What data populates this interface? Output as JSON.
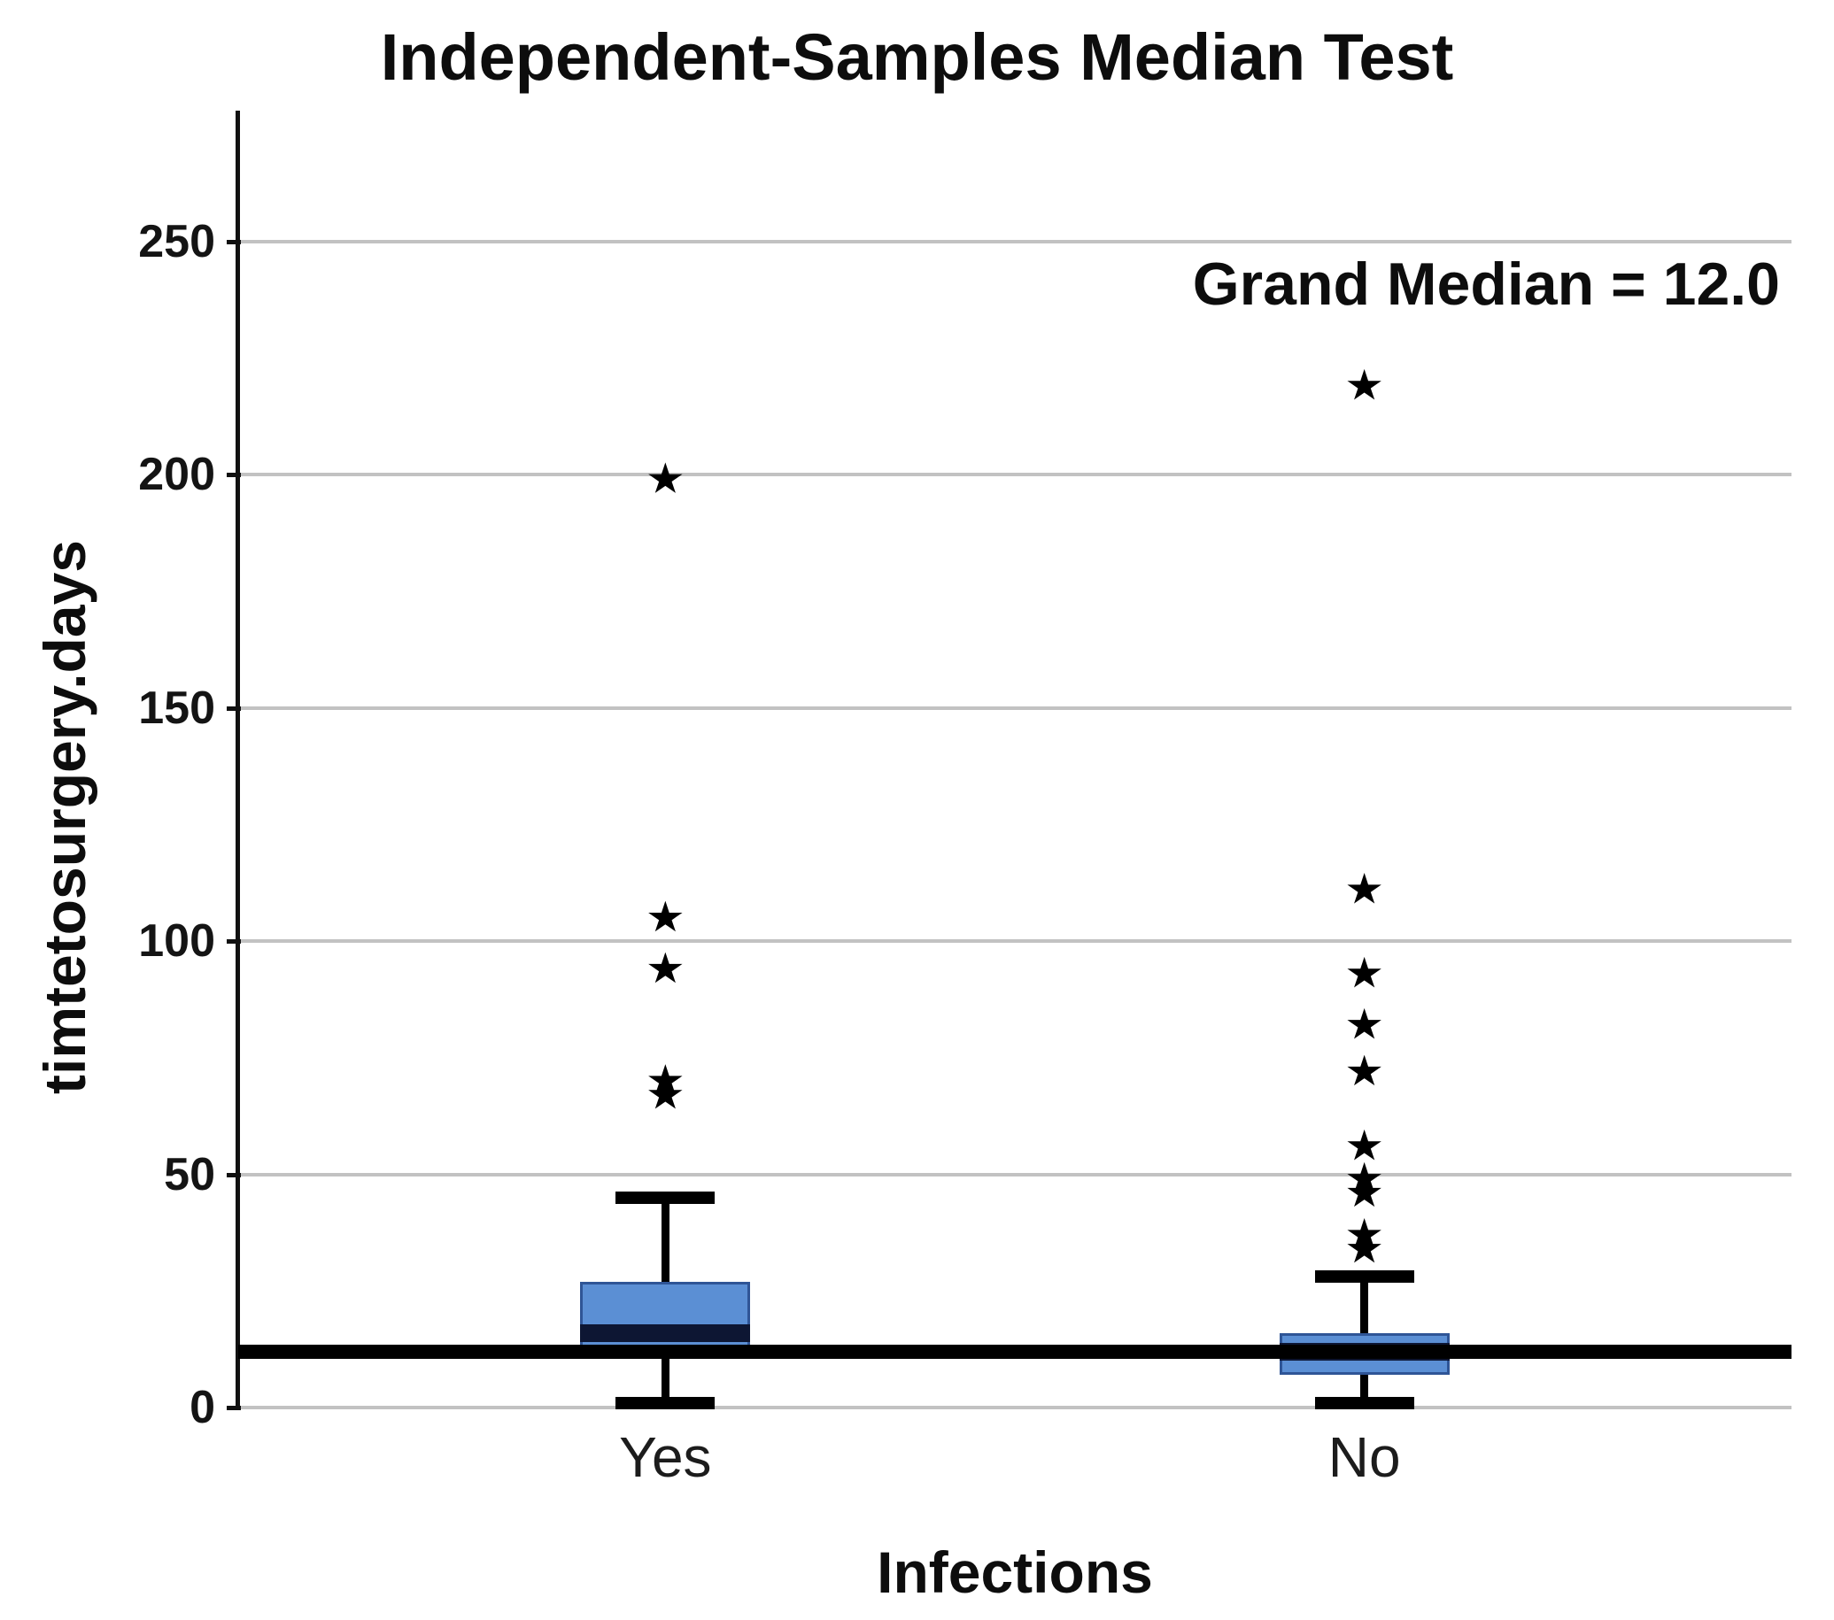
{
  "figure": {
    "title": "Independent-Samples Median Test",
    "annotation": "Grand Median = 12.0",
    "y_axis_label": "timtetosurgery.days",
    "x_axis_label": "Infections"
  },
  "colors": {
    "background": "#ffffff",
    "text": "#0d0d0d",
    "box_fill": "#5b8fd4",
    "box_border": "#2f5596",
    "median_line": "#0d1633",
    "whisker": "#000000",
    "grand_median_line": "#000000",
    "gridline": "#c2c2c2"
  },
  "chart_data": {
    "type": "boxplot",
    "title": "Independent-Samples Median Test",
    "xlabel": "Infections",
    "ylabel": "timtetosurgery.days",
    "annotation": "Grand Median = 12.0",
    "grand_median": 12.0,
    "categories": [
      "Yes",
      "No"
    ],
    "yticks": [
      0,
      50,
      100,
      150,
      200,
      250
    ],
    "ylim": [
      0,
      278
    ],
    "grid": true,
    "legend": false,
    "outlier_marker": "star",
    "series": [
      {
        "name": "Yes",
        "whisker_low": 0,
        "q1": 11,
        "median": 16,
        "q3": 27,
        "whisker_high": 45,
        "outliers": [
          67,
          70,
          94,
          105,
          199
        ]
      },
      {
        "name": "No",
        "whisker_low": 0,
        "q1": 7,
        "median": 12,
        "q3": 16,
        "whisker_high": 28,
        "outliers": [
          34,
          37,
          46,
          49,
          56,
          72,
          82,
          93,
          111,
          219
        ]
      }
    ]
  }
}
